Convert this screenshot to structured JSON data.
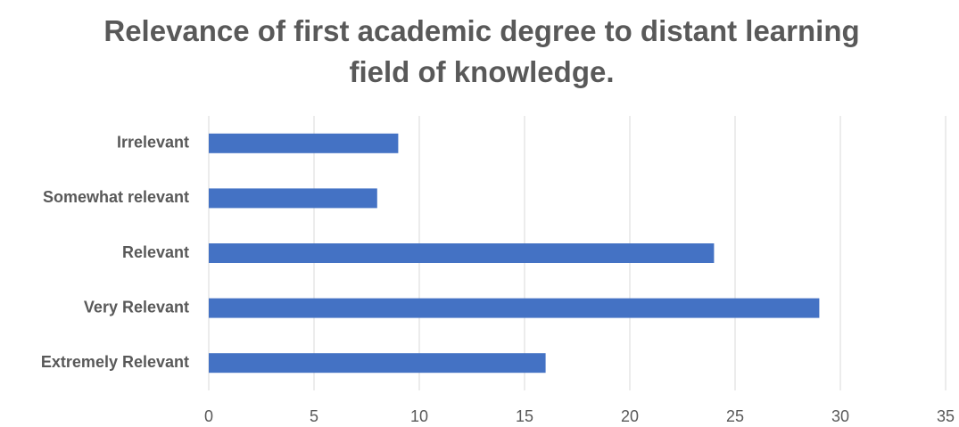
{
  "chart_data": {
    "type": "bar",
    "orientation": "horizontal",
    "title": "Relevance of first academic degree to distant learning field of knowledge.",
    "categories": [
      "Irrelevant",
      "Somewhat relevant",
      "Relevant",
      "Very Relevant",
      "Extremely Relevant"
    ],
    "values": [
      9,
      8,
      24,
      29,
      16
    ],
    "color": "#4472c4",
    "xlim": [
      0,
      35
    ],
    "xticks": [
      0,
      5,
      10,
      15,
      20,
      25,
      30,
      35
    ],
    "grid": true
  }
}
